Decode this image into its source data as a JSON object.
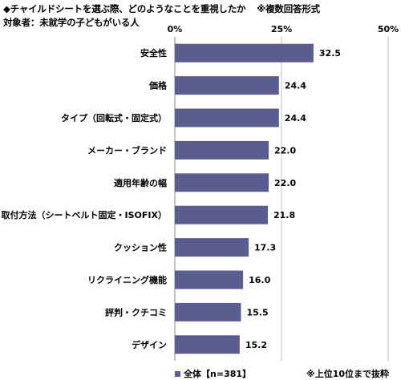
{
  "header": {
    "title": "◆チャイルドシートを選ぶ際、どのようなことを重視したか",
    "note": "※複数回答形式",
    "target": "対象者：未就学の子どもがいる人"
  },
  "chart_data": {
    "type": "bar",
    "orientation": "horizontal",
    "categories": [
      "安全性",
      "価格",
      "タイプ（回転式・固定式）",
      "メーカー・ブランド",
      "適用年齢の幅",
      "取付方法（シートベルト固定・ISOFIX）",
      "クッション性",
      "リクライニング機能",
      "評判・クチコミ",
      "デザイン"
    ],
    "series": [
      {
        "name": "全体【n=381】",
        "values": [
          32.5,
          24.4,
          24.4,
          22.0,
          22.0,
          21.8,
          17.3,
          16.0,
          15.5,
          15.2
        ],
        "value_labels": [
          "32.5",
          "24.4",
          "24.4",
          "22.0",
          "22.0",
          "21.8",
          "17.3",
          "16.0",
          "15.5",
          "15.2"
        ]
      }
    ],
    "xlim": [
      0,
      50
    ],
    "ticks": [
      0,
      25,
      50
    ],
    "tick_labels": [
      "0%",
      "25%",
      "50%"
    ],
    "grid": true,
    "legend_position": "bottom",
    "colors": {
      "bar": "#5b5c8f",
      "grid": "#bfbfbf",
      "axis": "#888888"
    }
  },
  "footnote": "※上位10位まで抜粋"
}
